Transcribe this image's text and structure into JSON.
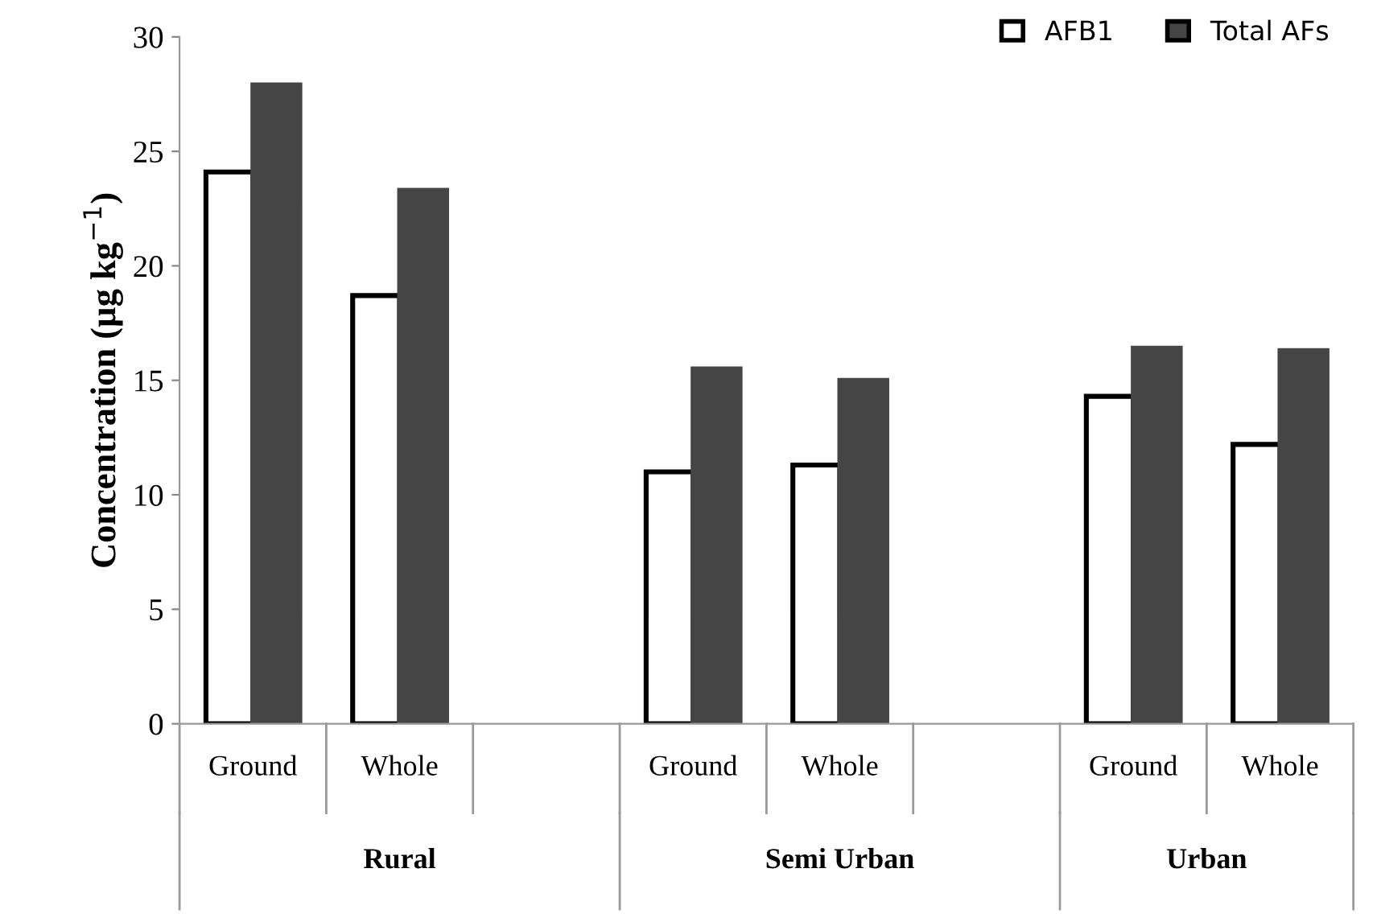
{
  "chart_data": {
    "type": "bar",
    "ylabel": "Concentration (µg kg$^{−1}$)",
    "categories": [
      "Ground",
      "Whole",
      null,
      "Ground",
      "Whole",
      null,
      "Ground",
      "Whole"
    ],
    "series": [
      {
        "name": "AFB1",
        "color": "#ffffff",
        "values": [
          24.1,
          18.7,
          null,
          11.0,
          11.3,
          null,
          14.3,
          12.2
        ]
      },
      {
        "name": "Total AFs",
        "color": "#454545",
        "values": [
          27.9,
          23.3,
          null,
          15.5,
          15.0,
          null,
          16.4,
          16.3
        ]
      }
    ],
    "ylim": [
      0,
      30
    ],
    "yticks": [
      0,
      5,
      10,
      15,
      20,
      25,
      30
    ],
    "grid": false,
    "legend": "top right",
    "annotations": [
      "Rural",
      "Semi Urban",
      "Urban"
    ]
  }
}
